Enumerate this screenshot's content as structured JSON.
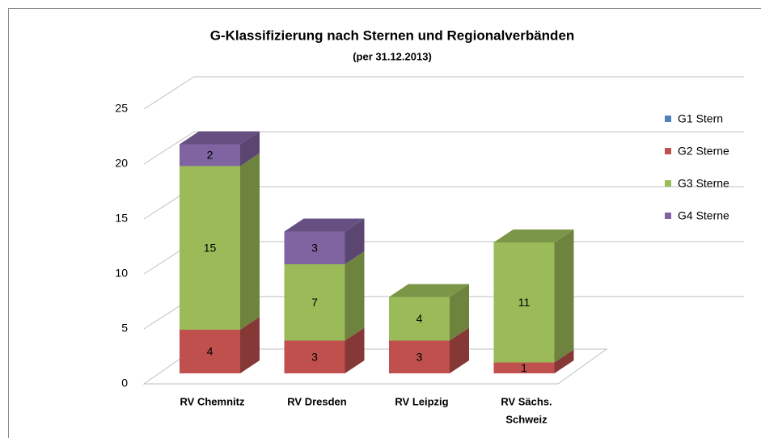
{
  "chart_data": {
    "type": "bar3d_stacked",
    "title": "G-Klassifizierung nach Sternen und Regionalverbänden",
    "subtitle": "(per 31.12.2013)",
    "categories": [
      "RV Chemnitz",
      "RV Dresden",
      "RV  Leipzig",
      [
        "RV Sächs.",
        "Schweiz"
      ]
    ],
    "series": [
      {
        "name": "G1 Stern",
        "color": "#4f81bd",
        "values": [
          0,
          0,
          0,
          0
        ]
      },
      {
        "name": "G2 Sterne",
        "color": "#c0504d",
        "values": [
          4,
          3,
          3,
          1
        ]
      },
      {
        "name": "G3 Sterne",
        "color": "#9bbb59",
        "values": [
          15,
          7,
          4,
          11
        ]
      },
      {
        "name": "G4 Sterne",
        "color": "#8064a2",
        "values": [
          2,
          3,
          0,
          0
        ]
      }
    ],
    "ylim": [
      0,
      25
    ],
    "yticks": [
      0,
      5,
      10,
      15,
      20,
      25
    ],
    "grid": true,
    "legend": "right"
  }
}
